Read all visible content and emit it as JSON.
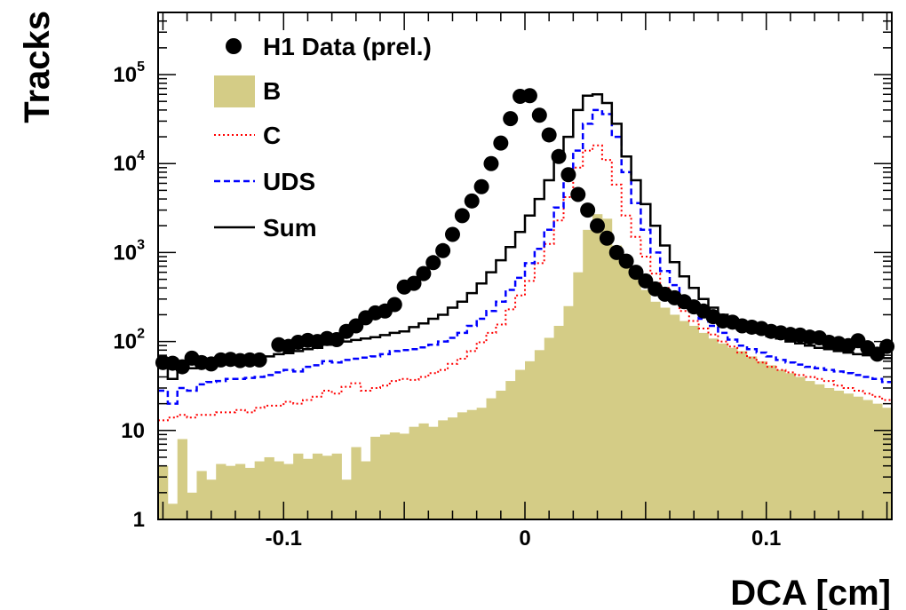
{
  "chart_data": {
    "type": "histogram",
    "xlabel": "DCA [cm]",
    "ylabel": "Tracks",
    "xlim": [
      -0.152,
      0.152
    ],
    "ylim": [
      1,
      500000
    ],
    "y_scale": "log",
    "x_ticks": [
      {
        "value": -0.1,
        "label": "-0.1"
      },
      {
        "value": 0,
        "label": "0"
      },
      {
        "value": 0.1,
        "label": "0.1"
      }
    ],
    "y_ticks": [
      {
        "value": 1,
        "base": "1",
        "exp": ""
      },
      {
        "value": 10,
        "base": "10",
        "exp": ""
      },
      {
        "value": 100,
        "base": "10",
        "exp": "2"
      },
      {
        "value": 1000,
        "base": "10",
        "exp": "3"
      },
      {
        "value": 10000,
        "base": "10",
        "exp": "4"
      },
      {
        "value": 100000,
        "base": "10",
        "exp": "5"
      }
    ],
    "legend": {
      "position": "top-left",
      "entries": [
        {
          "key": "data",
          "label": "H1 Data (prel.)",
          "style": "marker"
        },
        {
          "key": "b",
          "label": "B",
          "style": "fill"
        },
        {
          "key": "c",
          "label": "C",
          "style": "dotted"
        },
        {
          "key": "uds",
          "label": "UDS",
          "style": "dashed"
        },
        {
          "key": "sum",
          "label": "Sum",
          "style": "solid"
        }
      ]
    },
    "colors": {
      "data": "#000000",
      "b": "#d4cc86",
      "c": "#ff0000",
      "uds": "#0000ff",
      "sum": "#000000"
    },
    "bin_edges_range": [
      -0.152,
      0.152
    ],
    "bin_count": 76,
    "series": [
      {
        "key": "b",
        "values": [
          4,
          1.5,
          8,
          2,
          3.5,
          2.8,
          4.2,
          4,
          4.2,
          3.8,
          4.5,
          5,
          4.5,
          4.2,
          5.5,
          4.8,
          5.5,
          5.2,
          5.5,
          2.8,
          6.5,
          4.5,
          8.5,
          9,
          9.5,
          9.2,
          11,
          12,
          11,
          13,
          14,
          16,
          17,
          18,
          23,
          28,
          36,
          48,
          60,
          80,
          110,
          150,
          250,
          600,
          1800,
          2700,
          2400,
          1200,
          750,
          550,
          380,
          280,
          240,
          200,
          170,
          150,
          125,
          108,
          95,
          85,
          78,
          68,
          60,
          54,
          48,
          44,
          40,
          36,
          33,
          30,
          28,
          26,
          24,
          22,
          20,
          18
        ]
      },
      {
        "key": "c",
        "values": [
          13,
          14,
          15,
          14,
          15,
          15,
          16,
          16,
          17,
          16,
          18,
          19,
          19,
          21,
          20,
          22,
          24,
          28,
          26,
          31,
          34,
          28,
          30,
          32,
          36,
          38,
          37,
          40,
          44,
          48,
          56,
          64,
          78,
          98,
          125,
          155,
          230,
          330,
          480,
          760,
          1250,
          2300,
          4200,
          9000,
          14000,
          16000,
          11000,
          5800,
          2600,
          1500,
          900,
          580,
          400,
          290,
          220,
          170,
          140,
          120,
          100,
          88,
          75,
          66,
          58,
          52,
          48,
          45,
          42,
          40,
          38,
          36,
          32,
          30,
          28,
          26,
          24,
          22
        ]
      },
      {
        "key": "uds",
        "values": [
          28,
          20,
          30,
          28,
          33,
          35,
          36,
          38,
          38,
          39,
          40,
          42,
          45,
          48,
          46,
          52,
          54,
          60,
          58,
          62,
          64,
          66,
          68,
          72,
          78,
          80,
          82,
          86,
          92,
          100,
          110,
          125,
          150,
          180,
          220,
          280,
          380,
          520,
          760,
          1100,
          1800,
          3200,
          6500,
          14000,
          28000,
          40000,
          36000,
          20000,
          8000,
          3600,
          1800,
          1000,
          620,
          430,
          310,
          240,
          180,
          150,
          125,
          105,
          90,
          82,
          75,
          68,
          62,
          58,
          55,
          52,
          50,
          48,
          46,
          44,
          42,
          40,
          38,
          35
        ]
      },
      {
        "key": "sum",
        "values": [
          55,
          38,
          55,
          50,
          58,
          60,
          62,
          62,
          60,
          62,
          64,
          68,
          72,
          74,
          78,
          82,
          85,
          92,
          98,
          100,
          104,
          108,
          112,
          118,
          125,
          130,
          145,
          160,
          180,
          200,
          240,
          280,
          350,
          450,
          600,
          820,
          1150,
          1700,
          2600,
          4000,
          6500,
          11000,
          20000,
          40000,
          58000,
          60000,
          48000,
          28000,
          12000,
          6500,
          3500,
          2000,
          1200,
          780,
          540,
          400,
          300,
          240,
          200,
          170,
          150,
          135,
          125,
          115,
          108,
          100,
          95,
          90,
          85,
          82,
          78,
          75,
          72,
          70,
          68,
          65
        ]
      },
      {
        "key": "data",
        "x": [
          -0.15,
          -0.146,
          -0.142,
          -0.138,
          -0.134,
          -0.13,
          -0.126,
          -0.122,
          -0.118,
          -0.114,
          -0.11,
          -0.102,
          -0.098,
          -0.094,
          -0.09,
          -0.086,
          -0.082,
          -0.078,
          -0.074,
          -0.07,
          -0.066,
          -0.062,
          -0.058,
          -0.054,
          -0.05,
          -0.046,
          -0.042,
          -0.038,
          -0.034,
          -0.03,
          -0.026,
          -0.022,
          -0.018,
          -0.014,
          -0.01,
          -0.006,
          -0.002,
          0.002,
          0.006,
          0.01,
          0.014,
          0.018,
          0.022,
          0.026,
          0.03,
          0.034,
          0.038,
          0.042,
          0.046,
          0.05,
          0.054,
          0.058,
          0.062,
          0.066,
          0.07,
          0.074,
          0.078,
          0.082,
          0.086,
          0.09,
          0.094,
          0.098,
          0.102,
          0.106,
          0.11,
          0.114,
          0.118,
          0.122,
          0.126,
          0.13,
          0.134,
          0.138,
          0.142,
          0.146,
          0.15
        ],
        "y": [
          58,
          57,
          52,
          65,
          58,
          56,
          62,
          63,
          61,
          62,
          62,
          92,
          88,
          98,
          103,
          100,
          108,
          105,
          130,
          150,
          185,
          210,
          220,
          260,
          410,
          450,
          580,
          770,
          1050,
          1600,
          2600,
          3800,
          5500,
          10000,
          17000,
          32000,
          57000,
          58000,
          35000,
          21000,
          12000,
          7500,
          4500,
          3000,
          2000,
          1450,
          1000,
          800,
          600,
          480,
          390,
          340,
          310,
          280,
          245,
          220,
          190,
          170,
          165,
          150,
          145,
          140,
          130,
          125,
          120,
          118,
          112,
          110,
          98,
          95,
          90,
          102,
          85,
          72,
          88
        ]
      }
    ]
  }
}
